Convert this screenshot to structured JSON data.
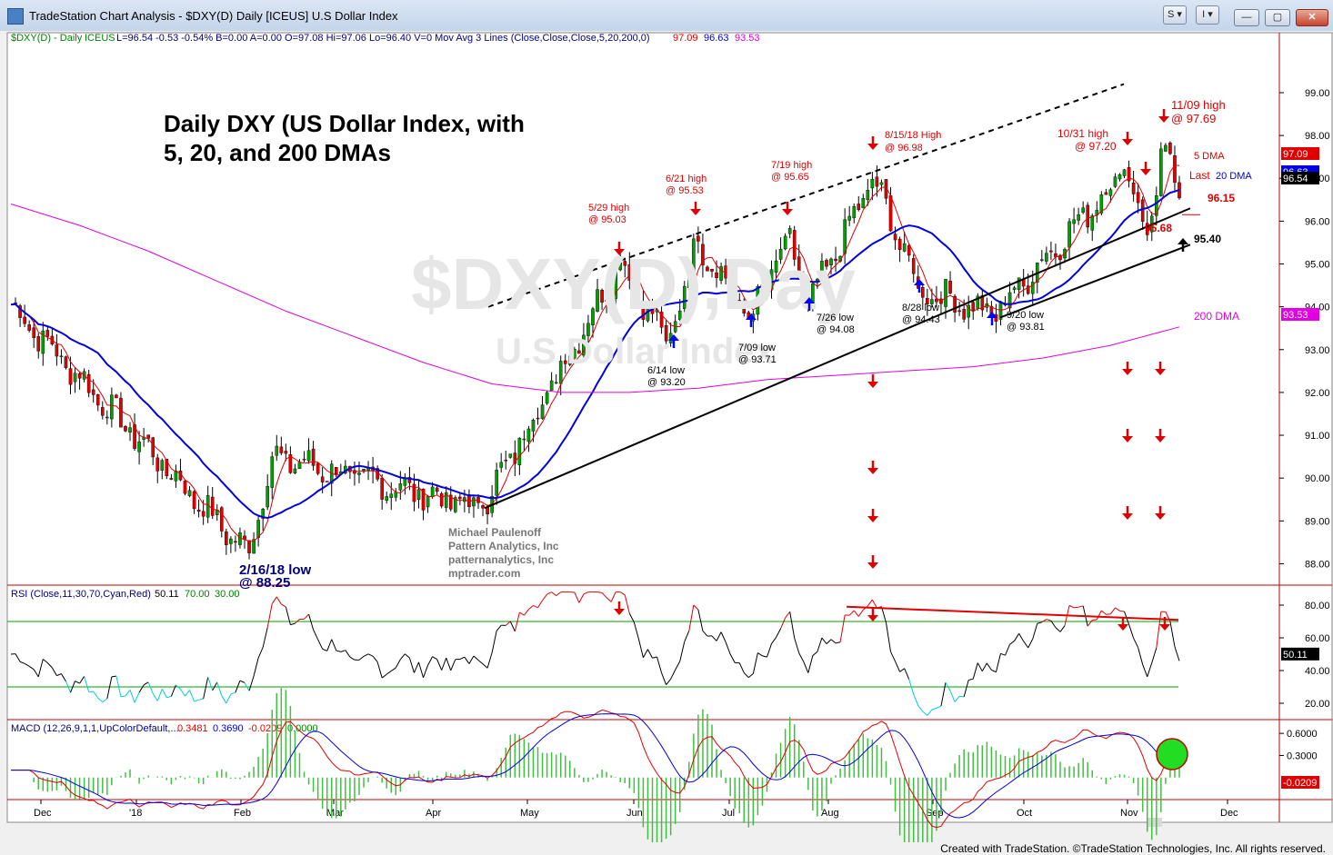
{
  "window": {
    "title": "TradeStation Chart Analysis - $DXY(D) Daily [ICEUS] U.S Dollar Index",
    "btn1": "S ▾",
    "btn2": "I ▾",
    "minimize": "—",
    "maximize": "▢",
    "close": "✕"
  },
  "footer": "Created with TradeStation. ©TradeStation Technologies, Inc. All rights reserved.",
  "chart_data": [
    {
      "type": "candlestick",
      "header": {
        "symbol": "$DXY(D) - Daily",
        "exchange": "ICEUS",
        "stats": "L=96.54  -0.53  -0.54%  B=0.00  A=0.00  O=97.08  Hi=97.06  Lo=96.40  V=0  Mov Avg 3 Lines (Close,Close,Close,5,20,200,0)",
        "ma5": "97.09",
        "ma20": "96.63",
        "ma200": "93.53"
      },
      "title": "Daily DXY (US Dollar Index, with\n5, 20, and 200 DMAs",
      "watermark": "$DXY(D),Day",
      "watermark_sub": "U.S Dollar Index",
      "y_ticks": [
        "99.00",
        "98.00",
        "97.00",
        "96.00",
        "95.00",
        "94.00",
        "93.00",
        "92.00",
        "91.00",
        "90.00",
        "89.00",
        "88.00"
      ],
      "ylim": [
        87.5,
        100.4
      ],
      "x_ticks": [
        "Dec",
        "'18",
        "Feb",
        "Mar",
        "Apr",
        "May",
        "Jun",
        "Jul",
        "Aug",
        "Sep",
        "Oct",
        "Nov",
        "Dec"
      ],
      "colors": {
        "up": "#00a000",
        "down": "#e00000",
        "ma5": "#e00000",
        "ma20": "#0000e0",
        "ma200": "#e000e0",
        "annotation": "#e00000"
      },
      "key_points": [
        {
          "label": "start",
          "value": 94.05
        },
        {
          "label": "2/16/18 low",
          "value": 88.25
        },
        {
          "label": "late Feb high",
          "value": 90.5
        },
        {
          "label": "Apr base",
          "value": 89.3
        },
        {
          "label": "5/29 high",
          "value": 95.03
        },
        {
          "label": "6/14 low",
          "value": 93.2
        },
        {
          "label": "6/21 high",
          "value": 95.53
        },
        {
          "label": "7/09 low",
          "value": 93.71
        },
        {
          "label": "7/19 high",
          "value": 95.65
        },
        {
          "label": "7/26 low",
          "value": 94.08
        },
        {
          "label": "8/15/18 high",
          "value": 96.98
        },
        {
          "label": "8/28 low",
          "value": 94.43
        },
        {
          "label": "9/20 low",
          "value": 93.81
        },
        {
          "label": "10/31 high",
          "value": 97.2
        },
        {
          "label": "95.68 low",
          "value": 95.68
        },
        {
          "label": "11/09 high",
          "value": 97.69
        },
        {
          "label": "last",
          "value": 96.54
        }
      ],
      "ma200_path": [
        96.4,
        95.9,
        95.3,
        94.6,
        93.9,
        93.3,
        92.7,
        92.2,
        92.0,
        92.0,
        92.1,
        92.3,
        92.4,
        92.5,
        92.6,
        92.8,
        93.1,
        93.53
      ],
      "price_labels": {
        "last": "96.54",
        "ma5": "97.09",
        "ma20": "96.63",
        "ma200": "93.53"
      },
      "annotations": {
        "a1": "5/29 high",
        "a1b": "@ 95.03",
        "a2": "6/14 low",
        "a2b": "@ 93.20",
        "a3": "6/21 high",
        "a3b": "@ 95.53",
        "a4": "7/09 low",
        "a4b": "@ 93.71",
        "a5": "7/19 high",
        "a5b": "@ 95.65",
        "a6": "7/26 low",
        "a6b": "@ 94.08",
        "a7": "8/15/18 High",
        "a7b": "@ 96.98",
        "a8": "8/28 low",
        "a8b": "@ 94.43",
        "a9": "9/20 low",
        "a9b": "@ 93.81",
        "a10": "10/31 high",
        "a10b": "@ 97.20",
        "a11": "11/09 high",
        "a11b": "@ 97.69",
        "a12": "2/16/18 low",
        "a12b": "@ 88.25",
        "dma5": "5 DMA",
        "dma20a": "Last",
        "dma20b": "20 DMA",
        "dma200": "200 DMA",
        "lvl1": "96.15",
        "lvl2": "95.68",
        "lvl3": "95.40",
        "credit1": "Michael Paulenoff",
        "credit2": "Pattern Analytics, Inc",
        "credit3": "patternanalytics, Inc",
        "credit4": "mptrader.com"
      }
    },
    {
      "type": "line",
      "header": "RSI (Close,11,30,70,Cyan,Red)",
      "value": "50.11",
      "upper": "70.00",
      "lower": "30.00",
      "y_ticks": [
        "80.00",
        "60.00",
        "40.00",
        "20.00"
      ],
      "ylim": [
        10,
        90
      ],
      "current": "50.11"
    },
    {
      "type": "line",
      "header": "MACD (12,26,9,1,1,UpColorDefault,...",
      "macd": "0.3481",
      "signal": "0.3690",
      "hist": "-0.0209",
      "zero": "0.0000",
      "y_ticks": [
        "0.6000",
        "0.3000"
      ],
      "ylim": [
        -0.3,
        0.75
      ],
      "current": "-0.0209"
    }
  ]
}
